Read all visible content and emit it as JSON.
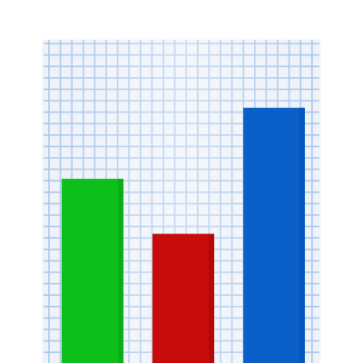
{
  "icon": {
    "name": "bar-chart-icon",
    "paper_color": "#eef2f9",
    "grid_color": "#a9c7ea",
    "bars": [
      {
        "name": "green-bar",
        "color": "#0cbf1b",
        "shade": "#07a313",
        "level": 0.57
      },
      {
        "name": "red-bar",
        "color": "#c80b0b",
        "shade": "#a90606",
        "level": 0.4
      },
      {
        "name": "blue-bar",
        "color": "#0a5fc9",
        "shade": "#064fae",
        "level": 0.79
      }
    ]
  }
}
